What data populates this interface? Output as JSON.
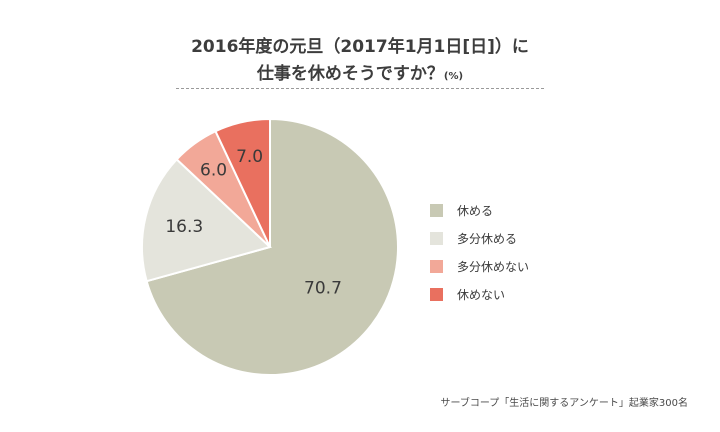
{
  "title": {
    "line1": "2016年度の元旦（2017年1月1日[日]）に",
    "line2": "仕事を休めそうですか？",
    "unit": "(%)"
  },
  "chart_data": {
    "type": "pie",
    "start": "12 o'clock",
    "direction": "clockwise",
    "categories": [
      "休める",
      "多分休める",
      "多分休めない",
      "休めない"
    ],
    "values": [
      70.7,
      16.3,
      6.0,
      7.0
    ],
    "labels": [
      "70.7",
      "16.3",
      "6.0",
      "7.0"
    ],
    "colors": [
      "#c8c9b4",
      "#e4e4dc",
      "#f2a898",
      "#e9705f"
    ],
    "legend_position": "right"
  },
  "source": "サーブコープ「生活に関するアンケート」起業家300名"
}
